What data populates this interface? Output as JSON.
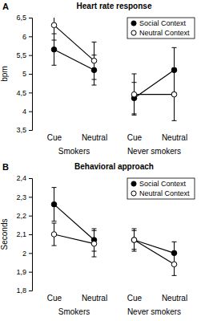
{
  "chart_data": [
    {
      "type": "line",
      "panel": "A",
      "title": "Heart rate response",
      "y_label": "bpm",
      "categories": [
        "Cue",
        "Neutral",
        "Cue",
        "Neutral"
      ],
      "groups": [
        "Smokers",
        "Never smokers"
      ],
      "series": [
        {
          "name": "Social Context",
          "color": "#000000",
          "marker": "circle",
          "values": [
            5.65,
            5.1,
            4.35,
            5.1
          ],
          "errors": [
            0.42,
            0.4,
            0.42,
            0.6
          ]
        },
        {
          "name": "Neutral Context",
          "color": "#ffffff",
          "marker": "circle",
          "values": [
            6.3,
            5.35,
            4.45,
            4.45
          ],
          "errors": [
            0.4,
            0.5,
            0.55,
            0.7
          ]
        }
      ],
      "ylim": [
        3.5,
        6.5
      ],
      "yticks": [
        {
          "value": 3.5,
          "label": "3,5"
        },
        4,
        {
          "value": 4.5,
          "label": "4,5"
        },
        5,
        {
          "value": 5.5,
          "label": "5,5"
        },
        6,
        {
          "value": 6.5,
          "label": "6,5"
        }
      ],
      "legend": "upper right"
    },
    {
      "type": "line",
      "panel": "B",
      "title": "Behavioral approach",
      "y_label": "Seconds",
      "categories": [
        "Cue",
        "Neutral",
        "Cue",
        "Neutral"
      ],
      "groups": [
        "Smokers",
        "Never smokers"
      ],
      "series": [
        {
          "name": "Social Context",
          "color": "#000000",
          "marker": "circle",
          "values": [
            2.26,
            2.07,
            2.07,
            2.0
          ],
          "errors": [
            0.09,
            0.06,
            0.06,
            0.06
          ]
        },
        {
          "name": "Neutral Context",
          "color": "#ffffff",
          "marker": "circle",
          "values": [
            2.1,
            2.05,
            2.07,
            1.94
          ],
          "errors": [
            0.06,
            0.07,
            0.05,
            0.06
          ]
        }
      ],
      "ylim": [
        1.8,
        2.4
      ],
      "yticks": [
        {
          "value": 1.8,
          "label": "1,8"
        },
        {
          "value": 1.9,
          "label": "1,9"
        },
        2,
        {
          "value": 2.1,
          "label": "2,1"
        },
        {
          "value": 2.2,
          "label": "2,2"
        },
        {
          "value": 2.3,
          "label": "2,3"
        },
        {
          "value": 2.4,
          "label": "2,4"
        }
      ],
      "legend": "upper right"
    }
  ]
}
